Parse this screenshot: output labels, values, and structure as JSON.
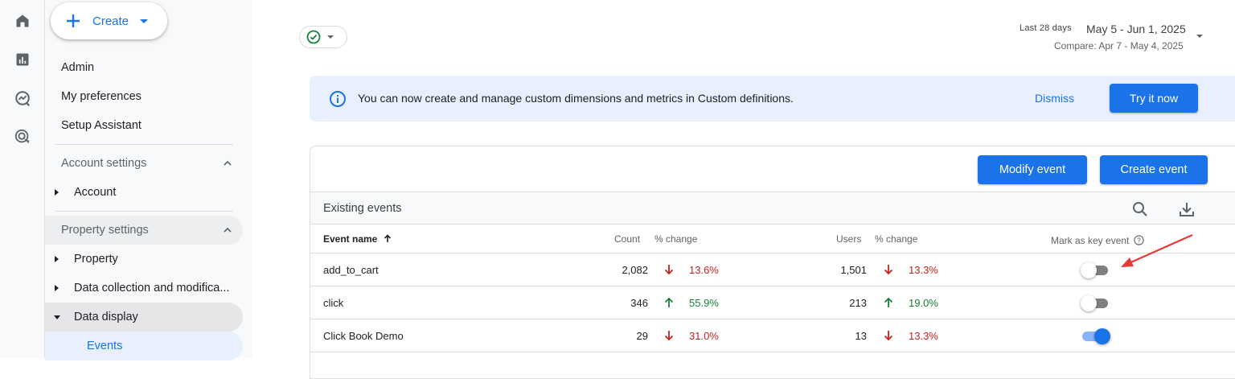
{
  "rail": {
    "icons": [
      "home-icon",
      "reports-icon",
      "explore-icon",
      "advertising-icon"
    ]
  },
  "nav": {
    "create_label": "Create",
    "links": [
      "Admin",
      "My preferences",
      "Setup Assistant"
    ],
    "account_settings": "Account settings",
    "account": "Account",
    "property_settings": "Property settings",
    "property": "Property",
    "data_collection": "Data collection and modifica...",
    "data_display": "Data display",
    "events": "Events"
  },
  "date_range": {
    "badge": "Last 28 days",
    "range": "May 5 - Jun 1, 2025",
    "compare": "Compare: Apr 7 - May 4, 2025"
  },
  "banner": {
    "message": "You can now create and manage custom dimensions and metrics in Custom definitions.",
    "dismiss": "Dismiss",
    "try_now": "Try it now"
  },
  "card": {
    "modify_event": "Modify event",
    "create_event": "Create event",
    "existing_events": "Existing events"
  },
  "table": {
    "columns": {
      "event_name": "Event name",
      "count": "Count",
      "count_change": "% change",
      "users": "Users",
      "users_change": "% change",
      "key_event": "Mark as key event"
    },
    "rows": [
      {
        "name": "add_to_cart",
        "count": "2,082",
        "count_change": "13.6%",
        "count_dir": "down",
        "users": "1,501",
        "users_change": "13.3%",
        "users_dir": "down",
        "key_event": false
      },
      {
        "name": "click",
        "count": "346",
        "count_change": "55.9%",
        "count_dir": "up",
        "users": "213",
        "users_change": "19.0%",
        "users_dir": "up",
        "key_event": false
      },
      {
        "name": "Click Book Demo",
        "count": "29",
        "count_change": "31.0%",
        "count_dir": "down",
        "users": "13",
        "users_change": "13.3%",
        "users_dir": "down",
        "key_event": true
      }
    ]
  },
  "colors": {
    "accent": "#1a73e8",
    "negative": "#c5221f",
    "positive": "#188038",
    "annotation": "#e53935"
  }
}
